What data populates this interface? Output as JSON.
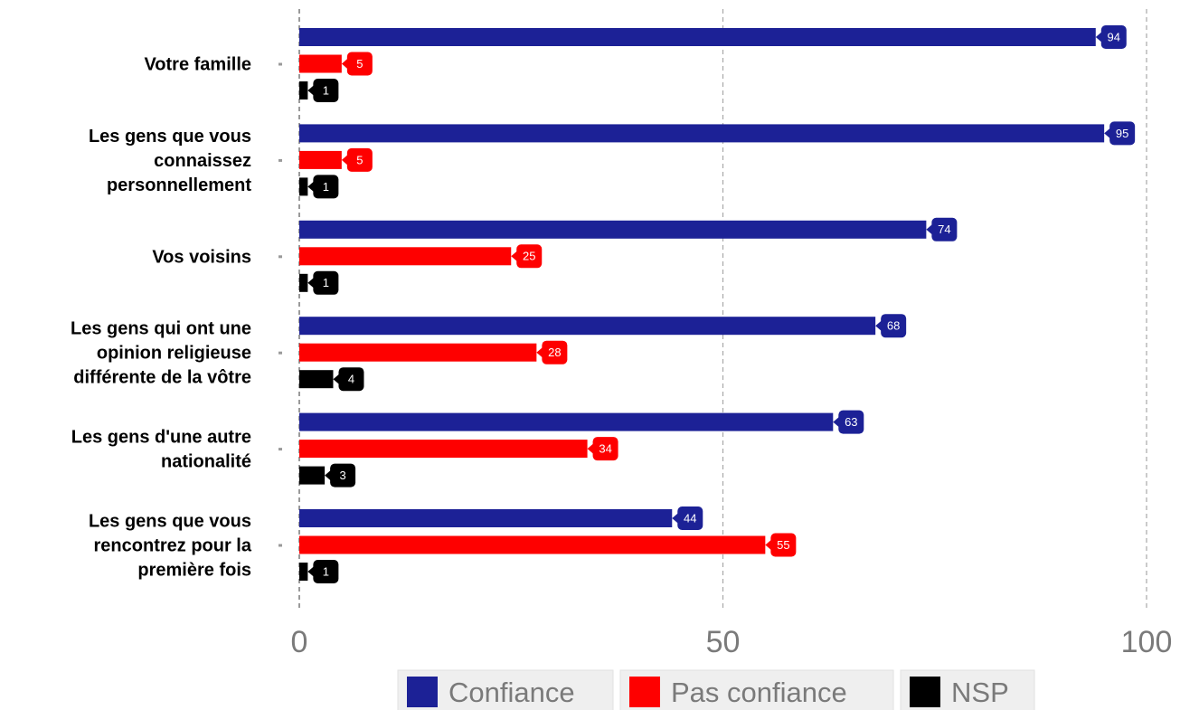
{
  "chart_data": {
    "type": "bar",
    "orientation": "horizontal",
    "categories": [
      [
        "Votre famille"
      ],
      [
        "Les gens que vous",
        "connaissez",
        "personnellement"
      ],
      [
        "Vos voisins"
      ],
      [
        "Les gens qui ont une",
        "opinion religieuse",
        "différente de la vôtre"
      ],
      [
        "Les gens d'une autre",
        "nationalité"
      ],
      [
        "Les gens que vous",
        "rencontrez pour la",
        "première fois"
      ]
    ],
    "series": [
      {
        "name": "Confiance",
        "color": "#1c2196",
        "values": [
          94,
          95,
          74,
          68,
          63,
          44
        ]
      },
      {
        "name": "Pas confiance",
        "color": "#fe0000",
        "values": [
          5,
          5,
          25,
          28,
          34,
          55
        ]
      },
      {
        "name": "NSP",
        "color": "#000000",
        "values": [
          1,
          1,
          1,
          4,
          3,
          1
        ]
      }
    ],
    "xlim": [
      0,
      100
    ],
    "xticks": [
      0,
      50,
      100
    ],
    "grid": true,
    "legend_position": "bottom"
  }
}
